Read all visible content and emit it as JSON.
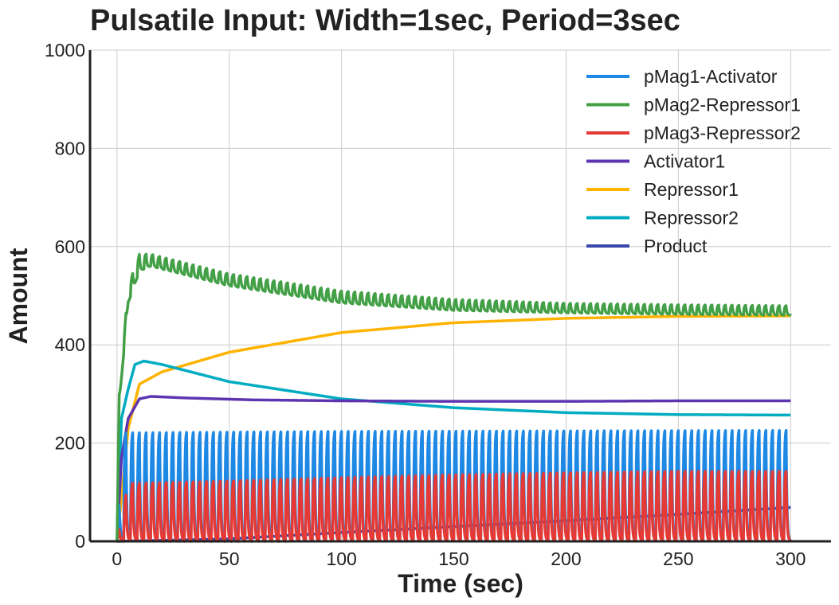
{
  "chart_data": {
    "type": "line",
    "title": "Pulsatile Input: Width=1sec, Period=3sec",
    "xlabel": "Time (sec)",
    "ylabel": "Amount",
    "xlim": [
      -12,
      318
    ],
    "ylim": [
      0,
      1000
    ],
    "xticks": [
      0,
      50,
      100,
      150,
      200,
      250,
      300
    ],
    "yticks": [
      0,
      200,
      400,
      600,
      800,
      1000
    ],
    "grid": true,
    "legend_position": "top-right",
    "pulse": {
      "width": 1,
      "period": 3
    },
    "series": [
      {
        "name": "pMag1-Activator",
        "color": "#1E88E5",
        "kind": "oscillating",
        "envelope": [
          [
            0,
            0
          ],
          [
            3,
            225
          ],
          [
            100,
            228
          ],
          [
            300,
            230
          ]
        ],
        "trough": [
          [
            0,
            0
          ],
          [
            3,
            0
          ],
          [
            300,
            0
          ]
        ],
        "end": 0
      },
      {
        "name": "pMag2-Repressor1",
        "color": "#43A047",
        "kind": "oscillating",
        "envelope": [
          [
            0,
            0
          ],
          [
            1,
            300
          ],
          [
            5,
            520
          ],
          [
            10,
            585
          ],
          [
            15,
            585
          ],
          [
            50,
            545
          ],
          [
            100,
            510
          ],
          [
            150,
            493
          ],
          [
            200,
            485
          ],
          [
            250,
            482
          ],
          [
            300,
            480
          ]
        ],
        "trough": [
          [
            0,
            0
          ],
          [
            1,
            280
          ],
          [
            5,
            485
          ],
          [
            10,
            550
          ],
          [
            15,
            560
          ],
          [
            50,
            520
          ],
          [
            100,
            485
          ],
          [
            150,
            470
          ],
          [
            200,
            465
          ],
          [
            250,
            462
          ],
          [
            300,
            460
          ]
        ],
        "end": 460
      },
      {
        "name": "pMag3-Repressor2",
        "color": "#E53935",
        "kind": "oscillating",
        "envelope": [
          [
            0,
            0
          ],
          [
            5,
            120
          ],
          [
            50,
            125
          ],
          [
            100,
            132
          ],
          [
            150,
            138
          ],
          [
            200,
            142
          ],
          [
            250,
            145
          ],
          [
            300,
            145
          ]
        ],
        "trough": [
          [
            0,
            0
          ],
          [
            300,
            0
          ]
        ],
        "end": 0
      },
      {
        "name": "Activator1",
        "color": "#5E35B1",
        "kind": "smooth",
        "points": [
          [
            0,
            0
          ],
          [
            2,
            170
          ],
          [
            5,
            250
          ],
          [
            10,
            290
          ],
          [
            15,
            295
          ],
          [
            30,
            292
          ],
          [
            60,
            288
          ],
          [
            100,
            286
          ],
          [
            150,
            285
          ],
          [
            200,
            285
          ],
          [
            250,
            286
          ],
          [
            300,
            286
          ]
        ]
      },
      {
        "name": "Repressor1",
        "color": "#FFB300",
        "kind": "smooth",
        "points": [
          [
            0,
            0
          ],
          [
            2,
            90
          ],
          [
            5,
            230
          ],
          [
            10,
            320
          ],
          [
            20,
            345
          ],
          [
            50,
            385
          ],
          [
            100,
            425
          ],
          [
            150,
            445
          ],
          [
            200,
            454
          ],
          [
            250,
            458
          ],
          [
            300,
            459
          ]
        ]
      },
      {
        "name": "Repressor2",
        "color": "#00ACC1",
        "kind": "smooth",
        "points": [
          [
            0,
            0
          ],
          [
            2,
            250
          ],
          [
            5,
            310
          ],
          [
            8,
            360
          ],
          [
            12,
            367
          ],
          [
            20,
            360
          ],
          [
            50,
            325
          ],
          [
            100,
            290
          ],
          [
            150,
            272
          ],
          [
            200,
            262
          ],
          [
            250,
            258
          ],
          [
            300,
            257
          ]
        ]
      },
      {
        "name": "Product",
        "color": "#3949AB",
        "kind": "smooth",
        "points": [
          [
            0,
            0
          ],
          [
            50,
            5
          ],
          [
            100,
            18
          ],
          [
            150,
            30
          ],
          [
            200,
            42
          ],
          [
            250,
            55
          ],
          [
            300,
            69
          ]
        ]
      }
    ]
  }
}
